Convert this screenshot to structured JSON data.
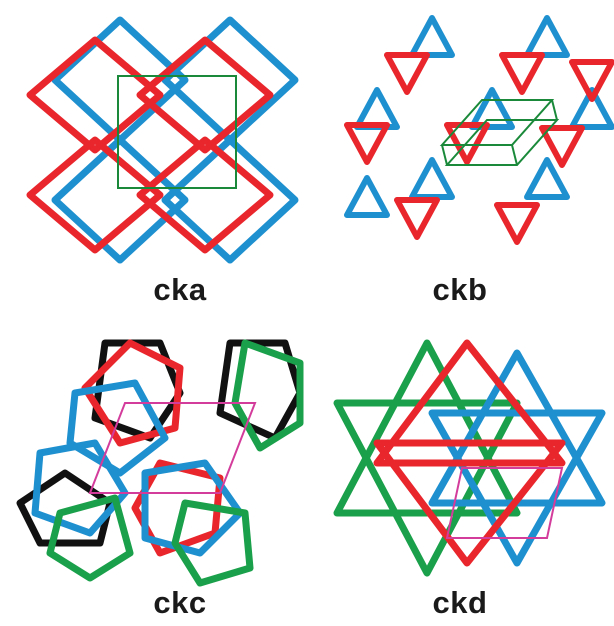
{
  "panels": [
    {
      "label": "cka",
      "colors": [
        "#e8262c",
        "#1e90d0"
      ],
      "cell_color": "#1a8a3a"
    },
    {
      "label": "ckb",
      "colors": [
        "#e8262c",
        "#1e90d0"
      ],
      "cell_color": "#1a8a3a"
    },
    {
      "label": "ckc",
      "colors": [
        "#e8262c",
        "#1e90d0",
        "#1aa04a",
        "#111111"
      ],
      "cell_color": "#d43c9c"
    },
    {
      "label": "ckd",
      "colors": [
        "#e8262c",
        "#1e90d0",
        "#1aa04a"
      ],
      "cell_color": "#d43c9c"
    }
  ]
}
